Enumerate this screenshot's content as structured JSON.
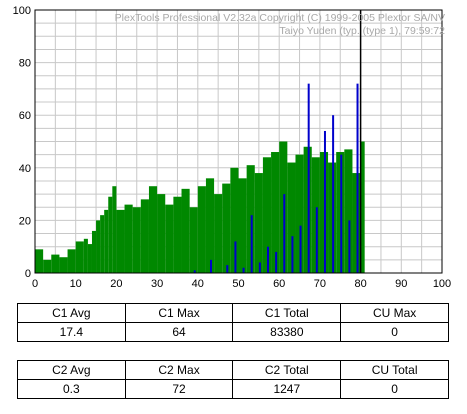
{
  "header": {
    "line1": "PlexTools Professional V2.32a Copyright (C) 1999-2005 Plextor SA/NV",
    "line2": "Taiyo Yuden (typ. (type 1), 79:59:72"
  },
  "chart_data": {
    "type": "bar",
    "xlim": [
      0,
      100
    ],
    "ylim": [
      0,
      100
    ],
    "x_ticks": [
      "0",
      "10",
      "20",
      "30",
      "40",
      "50",
      "60",
      "70",
      "80",
      "90",
      "100"
    ],
    "y_ticks": [
      "0",
      "20",
      "40",
      "60",
      "80",
      "100"
    ],
    "grid": true,
    "marker_x": 80,
    "series": [
      {
        "color": "#008800",
        "x": [
          0,
          2,
          4,
          6,
          8,
          10,
          12,
          13,
          14,
          15,
          16,
          17,
          18,
          19,
          20,
          22,
          24,
          26,
          28,
          30,
          32,
          34,
          36,
          38,
          40,
          42,
          44,
          46,
          48,
          50,
          52,
          54,
          56,
          58,
          60,
          62,
          64,
          66,
          68,
          70,
          72,
          74,
          76,
          78,
          80
        ],
        "values": [
          9,
          5,
          7,
          6,
          9,
          12,
          13,
          11,
          16,
          20,
          22,
          24,
          29,
          33,
          24,
          26,
          25,
          28,
          33,
          30,
          26,
          29,
          32,
          25,
          33,
          36,
          30,
          34,
          40,
          36,
          41,
          38,
          44,
          46,
          50,
          42,
          45,
          48,
          44,
          46,
          42,
          46,
          47,
          38,
          50
        ]
      },
      {
        "color": "#0000cc",
        "x": [
          39,
          41,
          43,
          45,
          47,
          49,
          51,
          53,
          55,
          57,
          59,
          61,
          63,
          65,
          67,
          69,
          71,
          73,
          75,
          77,
          79
        ],
        "values": [
          1,
          0,
          5,
          0,
          3,
          12,
          2,
          22,
          4,
          10,
          8,
          30,
          14,
          18,
          72,
          25,
          54,
          60,
          45,
          20,
          72
        ]
      }
    ]
  },
  "table_c1": {
    "headers": [
      "C1  Avg",
      "C1  Max",
      "C1  Total",
      "CU  Max"
    ],
    "values": [
      "17.4",
      "64",
      "83380",
      "0"
    ]
  },
  "table_c2": {
    "headers": [
      "C2  Avg",
      "C2  Max",
      "C2  Total",
      "CU  Total"
    ],
    "values": [
      "0.3",
      "72",
      "1247",
      "0"
    ]
  }
}
